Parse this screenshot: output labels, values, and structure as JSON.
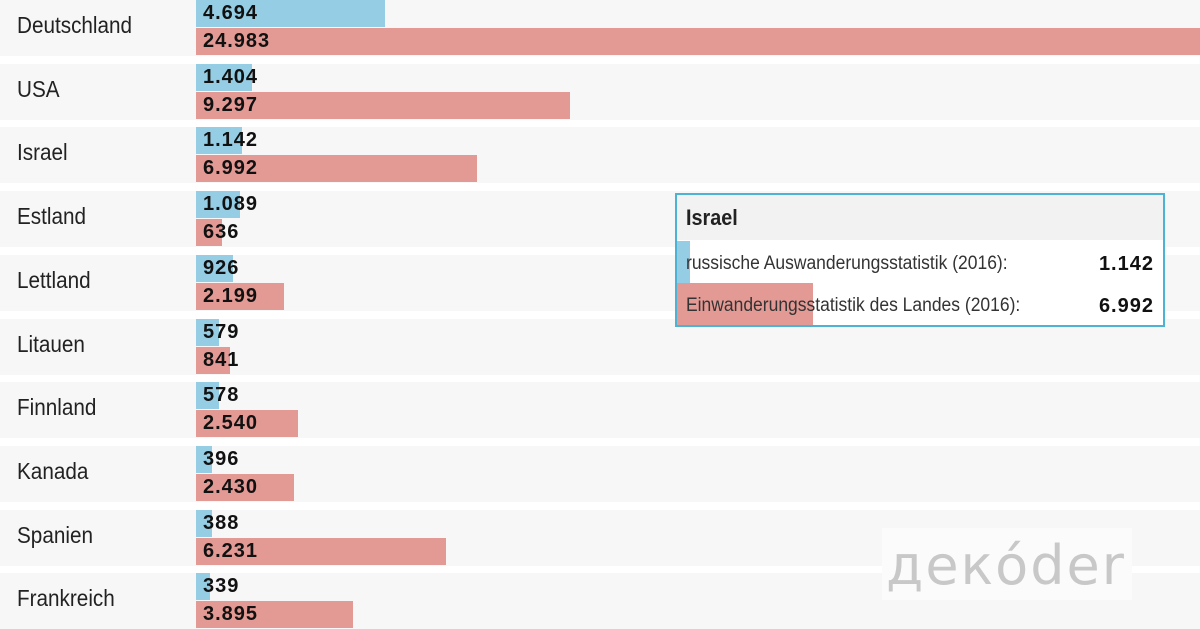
{
  "chart_data": {
    "type": "bar",
    "orientation": "horizontal",
    "categories": [
      "Deutschland",
      "USA",
      "Israel",
      "Estland",
      "Lettland",
      "Litauen",
      "Finnland",
      "Kanada",
      "Spanien",
      "Frankreich"
    ],
    "series": [
      {
        "name": "russische Auswanderungsstatistik (2016)",
        "color": "#95cde4",
        "values": [
          4694,
          1404,
          1142,
          1089,
          926,
          579,
          578,
          396,
          388,
          339
        ],
        "labels": [
          "4.694",
          "1.404",
          "1.142",
          "1.089",
          "926",
          "579",
          "578",
          "396",
          "388",
          "339"
        ]
      },
      {
        "name": "Einwanderungsstatistik des Landes (2016)",
        "color": "#e49a94",
        "values": [
          24983,
          9297,
          6992,
          636,
          2199,
          841,
          2540,
          2430,
          6231,
          3895
        ],
        "labels": [
          "24.983",
          "9.297",
          "6.992",
          "636",
          "2.199",
          "841",
          "2.540",
          "2.430",
          "6.231",
          "3.895"
        ]
      }
    ],
    "xlim": [
      0,
      24983
    ]
  },
  "tooltip": {
    "title": "Israel",
    "rows": [
      {
        "label": "russische Auswanderungsstatistik (2016):",
        "value": "1.142",
        "fraction": 0.026,
        "color": "#95cde4"
      },
      {
        "label": "Einwanderungsstatistik des Landes (2016):",
        "value": "6.992",
        "fraction": 0.28,
        "color": "#e49a94"
      }
    ]
  },
  "logo": {
    "text": "декóder"
  }
}
